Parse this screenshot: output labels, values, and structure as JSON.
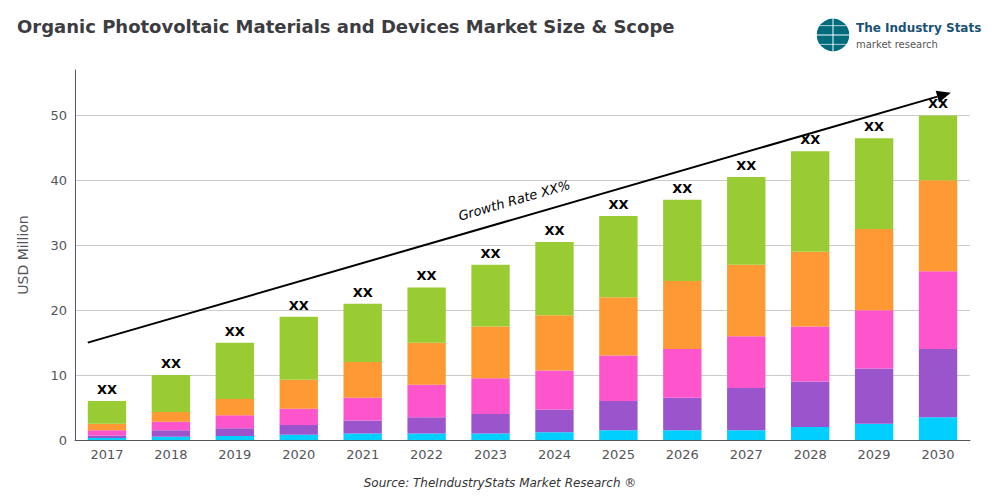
{
  "chart_data": {
    "type": "bar",
    "title": "Organic Photovoltaic Materials and Devices Market Size & Scope",
    "ylabel": "USD Million",
    "source": "Source: TheIndustryStats Market Research ®",
    "categories": [
      "2017",
      "2018",
      "2019",
      "2020",
      "2021",
      "2022",
      "2023",
      "2024",
      "2025",
      "2026",
      "2027",
      "2028",
      "2029",
      "2030"
    ],
    "stacked": true,
    "series": [
      {
        "color": "#00cfff",
        "values": [
          0.3,
          0.5,
          0.6,
          0.8,
          1.0,
          1.0,
          1.0,
          1.2,
          1.5,
          1.5,
          1.5,
          2.0,
          2.5,
          3.5
        ]
      },
      {
        "color": "#9b55cc",
        "values": [
          0.4,
          1.0,
          1.2,
          1.5,
          2.0,
          2.5,
          3.0,
          3.5,
          4.5,
          5.0,
          6.5,
          7.0,
          8.5,
          10.5
        ]
      },
      {
        "color": "#ff55cc",
        "values": [
          0.8,
          1.3,
          2.0,
          2.5,
          3.5,
          5.0,
          5.5,
          6.0,
          7.0,
          7.5,
          8.0,
          8.5,
          9.0,
          12.0
        ]
      },
      {
        "color": "#ff9933",
        "values": [
          1.0,
          1.5,
          2.5,
          4.5,
          5.5,
          6.5,
          8.0,
          8.5,
          9.0,
          10.5,
          11.0,
          11.5,
          12.5,
          14.0
        ]
      },
      {
        "color": "#99cc33",
        "values": [
          3.5,
          5.7,
          8.7,
          9.7,
          9.0,
          8.5,
          9.5,
          11.3,
          12.5,
          12.5,
          13.5,
          15.5,
          14.0,
          10.0
        ]
      }
    ],
    "ylim": [
      0,
      57
    ],
    "yticks": [
      0,
      10,
      20,
      30,
      40,
      50
    ],
    "grid": true,
    "annotations": [
      {
        "text": "XX",
        "category": "2017"
      },
      {
        "text": "XX",
        "category": "2018"
      },
      {
        "text": "XX",
        "category": "2019"
      },
      {
        "text": "XX",
        "category": "2020"
      },
      {
        "text": "XX",
        "category": "2021"
      },
      {
        "text": "XX",
        "category": "2022"
      },
      {
        "text": "XX",
        "category": "2023"
      },
      {
        "text": "XX",
        "category": "2024"
      },
      {
        "text": "XX",
        "category": "2025"
      },
      {
        "text": "XX",
        "category": "2026"
      },
      {
        "text": "XX",
        "category": "2027"
      },
      {
        "text": "XX",
        "category": "2028"
      },
      {
        "text": "XX",
        "category": "2029"
      },
      {
        "text": "XX",
        "category": "2030"
      },
      {
        "text": "Growth Rate XX%",
        "arrow_from": [
          -0.3,
          15.0
        ],
        "arrow_to": [
          13.2,
          53.5
        ]
      }
    ],
    "logo": {
      "title": "The Industry Stats",
      "subtitle": "market research"
    }
  }
}
